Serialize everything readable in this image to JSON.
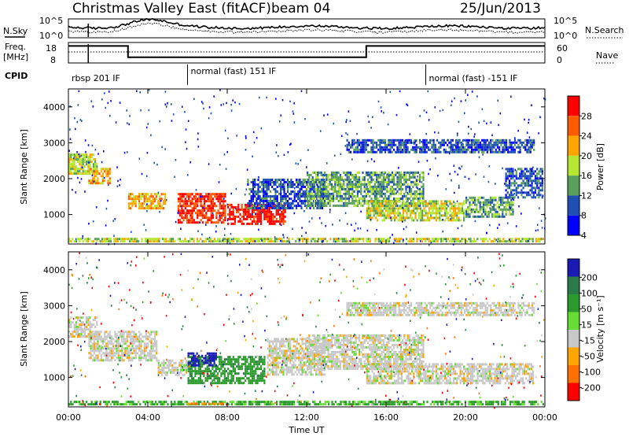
{
  "header": {
    "title": "Christmas Valley East (fitACF)",
    "beam": "beam 04",
    "date": "25/Jun/2013"
  },
  "noise_panel": {
    "left_label": "N.Sky",
    "right_label": "N.Search",
    "left_ticks": [
      "10^5",
      "10^0"
    ],
    "right_ticks": [
      "10^5",
      "10^0"
    ]
  },
  "freq_panel": {
    "left_label_1": "Freq.",
    "left_label_2": "[MHz]",
    "right_label": "Nave",
    "left_ticks": [
      "18",
      "8"
    ],
    "right_ticks": [
      "60",
      "0"
    ]
  },
  "cpid": {
    "label": "CPID",
    "segments": [
      {
        "label": "rbsp 201 IF",
        "start_h": 0,
        "end_h": 6
      },
      {
        "label": "normal (fast) 151 IF",
        "start_h": 6,
        "end_h": 18
      },
      {
        "label": "normal (fast) -151 IF",
        "start_h": 18,
        "end_h": 24
      }
    ]
  },
  "power_panel": {
    "ylabel": "Slant Range [km]",
    "colorbar_label": "Power [dB]",
    "colorbar_ticks": [
      "28",
      "24",
      "20",
      "16",
      "12",
      "8",
      "4"
    ],
    "colors": [
      "#ff0000",
      "#ff5a00",
      "#ffa500",
      "#b4e632",
      "#5aa05a",
      "#1e50b4",
      "#0000ff"
    ]
  },
  "velocity_panel": {
    "ylabel": "Slant Range [km]",
    "colorbar_label": "Velocity [m s⁻¹]",
    "colorbar_ticks": [
      "200",
      "100",
      "50",
      "15",
      "-15",
      "-50",
      "-100",
      "-200"
    ],
    "colors": [
      "#1a1ab4",
      "#2a7a4a",
      "#2a9a2a",
      "#66dd33",
      "#c8c8c8",
      "#ffa500",
      "#ff7000",
      "#ff0000"
    ]
  },
  "xaxis": {
    "label": "Time UT",
    "ticks": [
      "00:00",
      "04:00",
      "08:00",
      "12:00",
      "16:00",
      "20:00",
      "00:00"
    ]
  },
  "chart_data": {
    "type": "heatmap",
    "xlabel": "Time UT",
    "ylabel": "Slant Range [km]",
    "xlim_hours": [
      0,
      24
    ],
    "ylim_km": [
      180,
      4500
    ],
    "yticks": [
      1000,
      2000,
      3000,
      4000
    ],
    "frequency_mhz": [
      {
        "start_h": 0,
        "end_h": 3,
        "value": 17
      },
      {
        "start_h": 3,
        "end_h": 15,
        "value": 11
      },
      {
        "start_h": 15,
        "end_h": 24,
        "value": 17
      }
    ],
    "power_regions": [
      {
        "t0": 0.0,
        "t1": 1.5,
        "r0": 2100,
        "r1": 2700,
        "db": 16
      },
      {
        "t0": 1.0,
        "t1": 2.2,
        "r0": 1800,
        "r1": 2300,
        "db": 20
      },
      {
        "t0": 3.0,
        "t1": 5.0,
        "r0": 1100,
        "r1": 1600,
        "db": 20
      },
      {
        "t0": 5.5,
        "t1": 8.0,
        "r0": 700,
        "r1": 1600,
        "db": 26
      },
      {
        "t0": 8.0,
        "t1": 11.0,
        "r0": 700,
        "r1": 1300,
        "db": 28
      },
      {
        "t0": 9.0,
        "t1": 13.0,
        "r0": 1100,
        "r1": 2000,
        "db": 8
      },
      {
        "t0": 12.0,
        "t1": 18.0,
        "r0": 1200,
        "r1": 2200,
        "db": 12
      },
      {
        "t0": 15.0,
        "t1": 20.0,
        "r0": 800,
        "r1": 1400,
        "db": 16
      },
      {
        "t0": 14.0,
        "t1": 23.5,
        "r0": 2700,
        "r1": 3100,
        "db": 8
      },
      {
        "t0": 20.0,
        "t1": 22.5,
        "r0": 900,
        "r1": 1500,
        "db": 12
      },
      {
        "t0": 22.0,
        "t1": 24.0,
        "r0": 1400,
        "r1": 2300,
        "db": 8
      },
      {
        "t0": 0.0,
        "t1": 24.0,
        "r0": 180,
        "r1": 350,
        "db": 16
      }
    ],
    "velocity_regions": [
      {
        "t0": 0.0,
        "t1": 1.5,
        "r0": 2100,
        "r1": 2700,
        "v": 0
      },
      {
        "t0": 1.0,
        "t1": 4.5,
        "r0": 1400,
        "r1": 2300,
        "v": 0
      },
      {
        "t0": 4.5,
        "t1": 6.0,
        "r0": 1000,
        "r1": 1500,
        "v": 0
      },
      {
        "t0": 6.0,
        "t1": 10.0,
        "r0": 800,
        "r1": 1600,
        "v": 60
      },
      {
        "t0": 6.0,
        "t1": 7.5,
        "r0": 1300,
        "r1": 1700,
        "v": 200
      },
      {
        "t0": 10.0,
        "t1": 13.0,
        "r0": 1000,
        "r1": 2100,
        "v": 0
      },
      {
        "t0": 12.0,
        "t1": 18.0,
        "r0": 1200,
        "r1": 2200,
        "v": 0
      },
      {
        "t0": 15.0,
        "t1": 23.5,
        "r0": 800,
        "r1": 1400,
        "v": 0
      },
      {
        "t0": 14.0,
        "t1": 23.5,
        "r0": 2700,
        "r1": 3100,
        "v": 0
      },
      {
        "t0": 0.0,
        "t1": 24.0,
        "r0": 180,
        "r1": 350,
        "v": 40
      },
      {
        "t0": 6.0,
        "t1": 8.0,
        "r0": 180,
        "r1": 300,
        "v": -60
      }
    ]
  }
}
